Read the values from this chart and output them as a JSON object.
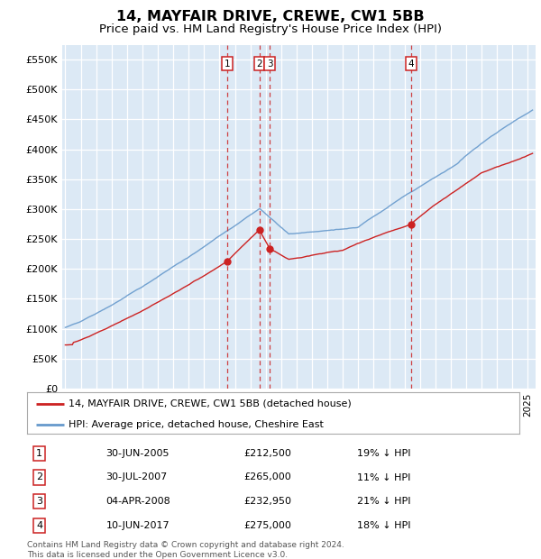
{
  "title": "14, MAYFAIR DRIVE, CREWE, CW1 5BB",
  "subtitle": "Price paid vs. HM Land Registry's House Price Index (HPI)",
  "ylabel_ticks": [
    "£0",
    "£50K",
    "£100K",
    "£150K",
    "£200K",
    "£250K",
    "£300K",
    "£350K",
    "£400K",
    "£450K",
    "£500K",
    "£550K"
  ],
  "ytick_values": [
    0,
    50000,
    100000,
    150000,
    200000,
    250000,
    300000,
    350000,
    400000,
    450000,
    500000,
    550000
  ],
  "ylim": [
    0,
    575000
  ],
  "xlim_start": 1994.8,
  "xlim_end": 2025.5,
  "plot_bg_color": "#dce9f5",
  "fig_bg_color": "#ffffff",
  "grid_color": "#ffffff",
  "hpi_line_color": "#6699cc",
  "price_line_color": "#cc2222",
  "sale_marker_color": "#cc2222",
  "sale_vline_color": "#cc2222",
  "transactions": [
    {
      "label": "1",
      "date_str": "30-JUN-2005",
      "year": 2005.5,
      "price": 212500,
      "pct": "19% ↓ HPI"
    },
    {
      "label": "2",
      "date_str": "30-JUL-2007",
      "year": 2007.58,
      "price": 265000,
      "pct": "11% ↓ HPI"
    },
    {
      "label": "3",
      "date_str": "04-APR-2008",
      "year": 2008.27,
      "price": 232950,
      "pct": "21% ↓ HPI"
    },
    {
      "label": "4",
      "date_str": "10-JUN-2017",
      "year": 2017.44,
      "price": 275000,
      "pct": "18% ↓ HPI"
    }
  ],
  "legend_line1": "14, MAYFAIR DRIVE, CREWE, CW1 5BB (detached house)",
  "legend_line2": "HPI: Average price, detached house, Cheshire East",
  "footnote": "Contains HM Land Registry data © Crown copyright and database right 2024.\nThis data is licensed under the Open Government Licence v3.0.",
  "title_fontsize": 11.5,
  "subtitle_fontsize": 9.5,
  "tick_fontsize": 8,
  "label_fontsize": 8
}
